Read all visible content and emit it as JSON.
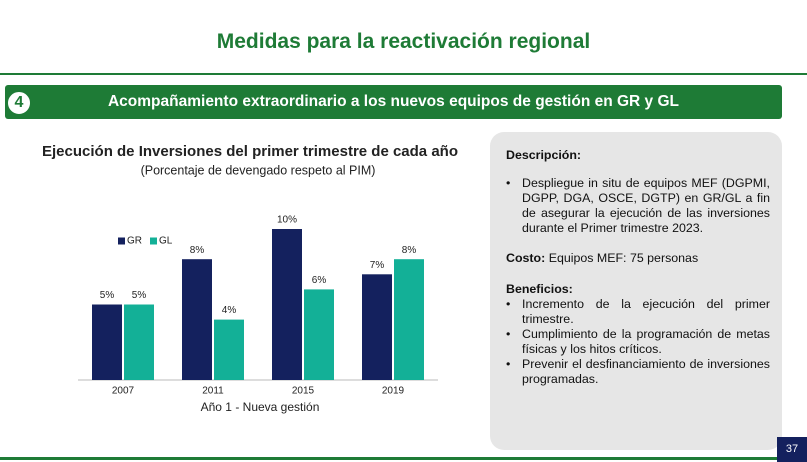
{
  "header": {
    "title": "Medidas para la reactivación regional"
  },
  "banner": {
    "number": "4",
    "title": "Acompañamiento extraordinario a los nuevos equipos de gestión en GR y GL"
  },
  "chart_data": {
    "type": "bar",
    "title": "Ejecución de Inversiones del primer trimestre de cada año",
    "subtitle": "(Porcentaje de devengado respeto al PIM)",
    "categories": [
      "2007",
      "2011",
      "2015",
      "2019"
    ],
    "series": [
      {
        "name": "GR",
        "color": "#14215e",
        "values": [
          5,
          8,
          10,
          7
        ],
        "value_labels": [
          "5%",
          "8%",
          "10%",
          "7%"
        ]
      },
      {
        "name": "GL",
        "color": "#13b097",
        "values": [
          5,
          4,
          6,
          8
        ],
        "value_labels": [
          "5%",
          "4%",
          "6%",
          "8%"
        ]
      }
    ],
    "x_label": "Año 1 - Nueva gestión",
    "ylim": [
      0,
      10
    ],
    "legend": "upper left"
  },
  "panel": {
    "description_heading": "Descripción:",
    "description_items": [
      "Despliegue in situ de equipos MEF (DGPMI, DGPP, DGA, OSCE, DGTP) en GR/GL a fin de asegurar la ejecución de las inversiones durante el Primer trimestre 2023."
    ],
    "cost_label": "Costo:",
    "cost_text": "Equipos MEF: 75 personas",
    "benefits_heading": "Beneficios:",
    "benefits_items": [
      "Incremento de la ejecución del primer trimestre.",
      "Cumplimiento de la programación de metas físicas y los hitos críticos.",
      "Prevenir el desfinanciamiento de inversiones programadas."
    ]
  },
  "footer": {
    "page": "37"
  }
}
